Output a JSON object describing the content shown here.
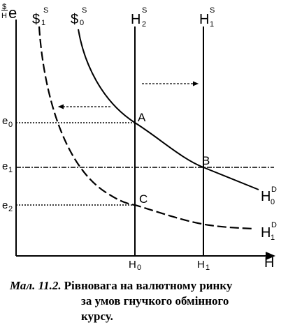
{
  "diagram": {
    "y_axis_label": "$/H e",
    "x_axis_label": "H",
    "supply_curves": [
      {
        "id": "s1",
        "label": "$",
        "sub": "1",
        "sup": "S"
      },
      {
        "id": "s0",
        "label": "$",
        "sub": "0",
        "sup": "S"
      }
    ],
    "vertical_lines": [
      {
        "id": "h2s",
        "label": "H",
        "sub": "2",
        "sup": "S"
      },
      {
        "id": "h1s",
        "label": "H",
        "sub": "1",
        "sup": "S"
      }
    ],
    "demand_curves": [
      {
        "id": "h0d",
        "label": "H",
        "sub": "0",
        "sup": "D"
      },
      {
        "id": "h1d",
        "label": "H",
        "sub": "1",
        "sup": "D"
      }
    ],
    "points": [
      "A",
      "B",
      "C"
    ],
    "y_ticks": [
      {
        "label": "e",
        "sub": "0"
      },
      {
        "label": "e",
        "sub": "1"
      },
      {
        "label": "e",
        "sub": "2"
      }
    ],
    "x_ticks": [
      {
        "label": "H",
        "sub": "0"
      },
      {
        "label": "H",
        "sub": "1"
      }
    ]
  },
  "caption": {
    "number": "Мал. 11.2.",
    "line1": "Рівновага на валютному ринку",
    "line2_words": [
      "за",
      "умов",
      "гнучкого",
      "обмінного"
    ],
    "line3": "курсу."
  }
}
